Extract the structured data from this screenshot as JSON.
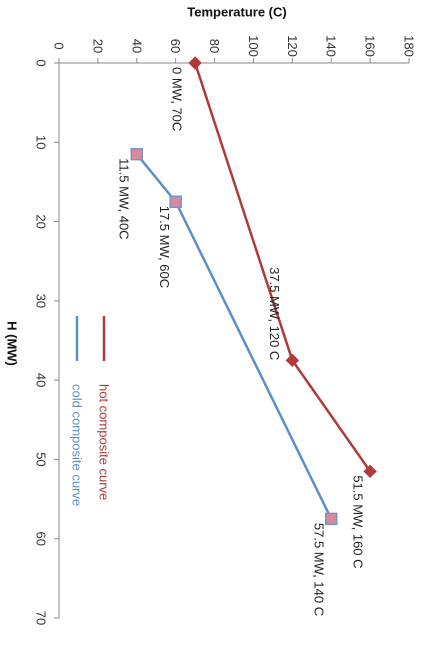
{
  "chart_data": {
    "type": "line",
    "xlabel": "Temperature (C)",
    "ylabel": "H (MW)",
    "xlim": [
      0,
      180
    ],
    "ylim": [
      0,
      70
    ],
    "x_ticks": [
      0,
      20,
      40,
      60,
      80,
      100,
      120,
      140,
      160,
      180
    ],
    "y_ticks": [
      0,
      10,
      20,
      30,
      40,
      50,
      60,
      70
    ],
    "grid": false,
    "legend_placement": "bottom-left",
    "series": [
      {
        "name": "hot composite curve",
        "color": "#b03a3a",
        "marker": "diamond",
        "points": [
          {
            "temperature": 70,
            "h": 0,
            "label": "0 MW, 70C"
          },
          {
            "temperature": 120,
            "h": 37.5,
            "label": "37.5 MW, 120 C"
          },
          {
            "temperature": 160,
            "h": 51.5,
            "label": "51.5 MW, 160 C"
          }
        ]
      },
      {
        "name": "cold composite curve",
        "color": "#5b8fcb",
        "marker": "square",
        "points": [
          {
            "temperature": 40,
            "h": 11.5,
            "label": "11.5 MW, 40C"
          },
          {
            "temperature": 60,
            "h": 17.5,
            "label": "17.5 MW, 60C"
          },
          {
            "temperature": 140,
            "h": 57.5,
            "label": "57.5 MW, 140 C"
          }
        ]
      }
    ]
  }
}
